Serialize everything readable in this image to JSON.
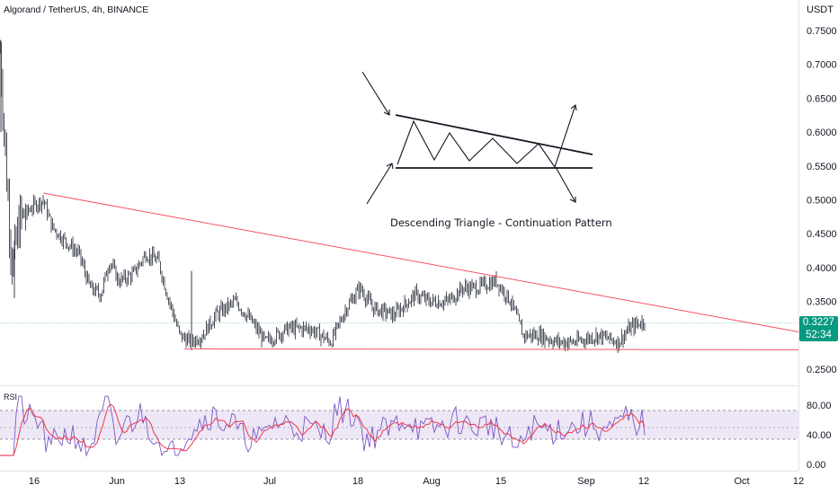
{
  "header": {
    "symbol": "Algorand / TetherUS, 4h, BINANCE",
    "currency": "USDT"
  },
  "price_axis": {
    "ticks": [
      "0.7500",
      "0.7000",
      "0.6500",
      "0.6000",
      "0.5500",
      "0.5000",
      "0.4500",
      "0.4000",
      "0.3500",
      "0.2500"
    ],
    "tick_values": [
      0.75,
      0.7,
      0.65,
      0.6,
      0.55,
      0.5,
      0.45,
      0.4,
      0.35,
      0.25
    ]
  },
  "last_price": {
    "value": "0.3227",
    "countdown": "52:34",
    "color": "#089981"
  },
  "time_axis": {
    "labels": [
      "16",
      "Jun",
      "13",
      "Jul",
      "18",
      "Aug",
      "15",
      "Sep",
      "12",
      "Oct",
      "12"
    ]
  },
  "rsi": {
    "label": "RSI",
    "ticks": [
      "80.00",
      "40.00",
      "0.00"
    ],
    "upper_band": 70,
    "lower_band": 30,
    "mid_line": 50,
    "line_color": "#7e57c2",
    "ma_color": "#f23645",
    "band_fill": "#ede7f6"
  },
  "annotation": {
    "title": "Descending Triangle - Continuation Pattern"
  },
  "drawings": {
    "trendline_color": "#f7525f",
    "resistance_start_price": 0.51,
    "resistance_end_price": 0.305,
    "support_price": 0.28
  },
  "chart_data": {
    "type": "candlestick",
    "description_series": [
      {
        "name": "",
        "points": [
          {
            "t": "early May",
            "p": 0.72
          },
          {
            "t": "mid May",
            "p": 0.48
          },
          {
            "t": "16",
            "p": 0.5
          },
          {
            "t": "late May",
            "p": 0.44
          },
          {
            "t": "early Jun",
            "p": 0.37
          },
          {
            "t": "Jun",
            "p": 0.41
          },
          {
            "t": "mid Jun",
            "p": 0.43
          },
          {
            "t": "13",
            "p": 0.3
          },
          {
            "t": "late Jun",
            "p": 0.35
          },
          {
            "t": "Jul",
            "p": 0.29
          },
          {
            "t": "mid Jul",
            "p": 0.31
          },
          {
            "t": "18",
            "p": 0.37
          },
          {
            "t": "late Jul",
            "p": 0.33
          },
          {
            "t": "Aug",
            "p": 0.36
          },
          {
            "t": "15",
            "p": 0.38
          },
          {
            "t": "late Aug",
            "p": 0.3
          },
          {
            "t": "Sep",
            "p": 0.29
          },
          {
            "t": "12",
            "p": 0.3227
          }
        ]
      }
    ],
    "ylim": [
      0.24,
      0.77
    ]
  }
}
